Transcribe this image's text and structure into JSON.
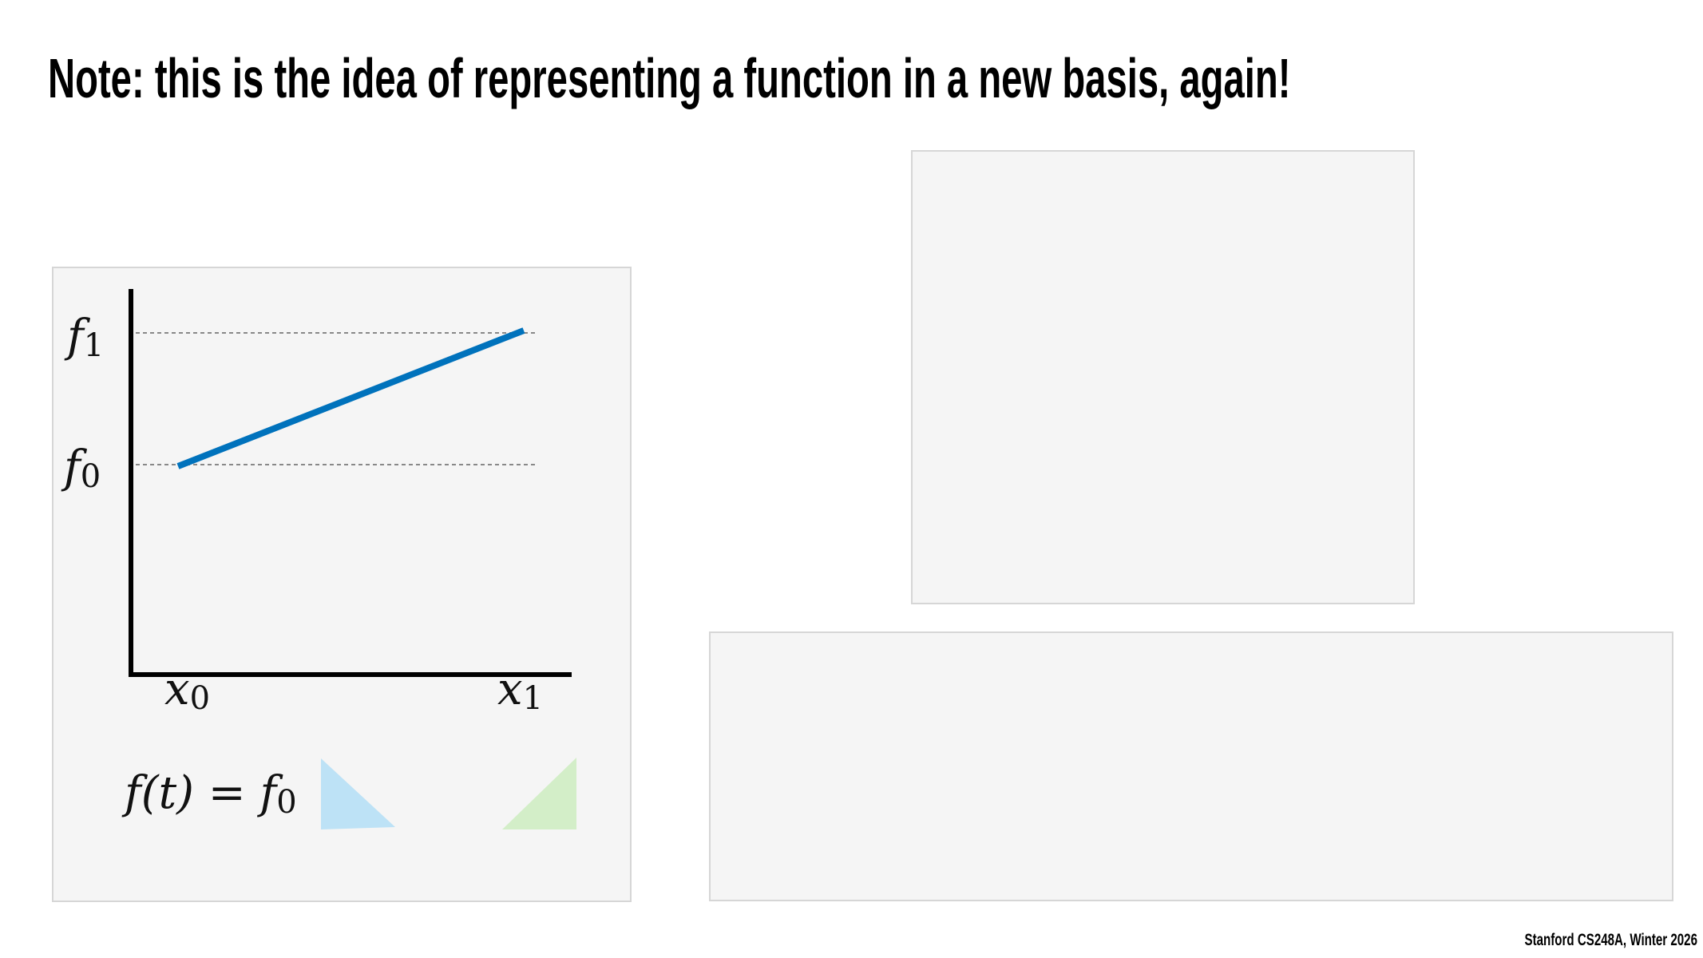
{
  "slide": {
    "title": "Note: this is the idea of representing a function in a new basis, again!",
    "footer": "Stanford CS248A, Winter 2026"
  },
  "diagram": {
    "y_labels": [
      {
        "base": "f",
        "sub": "1"
      },
      {
        "base": "f",
        "sub": "0"
      }
    ],
    "x_labels": [
      {
        "base": "x",
        "sub": "0"
      },
      {
        "base": "x",
        "sub": "1"
      }
    ],
    "formula": {
      "lhs": "f(t) = f",
      "sub": "0"
    },
    "line_color": "#0072bc",
    "basis_colors": {
      "falling": "#bde2f6",
      "rising": "#d3eec8"
    }
  },
  "colors": {
    "panel_bg": "#f5f5f5",
    "panel_border": "#d6d6d6"
  }
}
